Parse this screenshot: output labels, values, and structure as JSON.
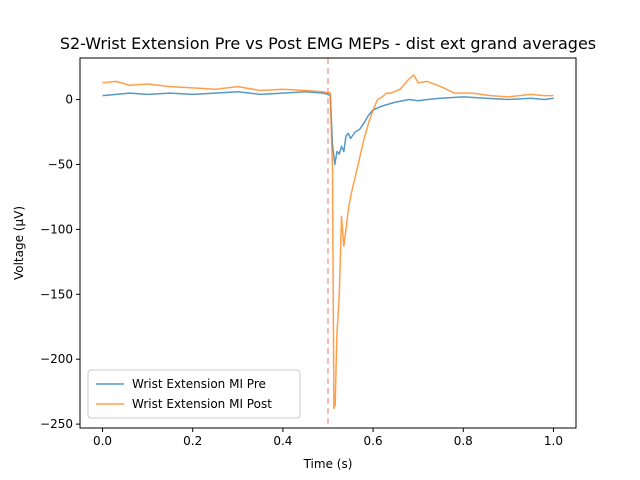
{
  "chart_data": {
    "type": "line",
    "title": "S2-Wrist Extension Pre vs Post EMG MEPs - dist ext grand averages",
    "xlabel": "Time (s)",
    "ylabel": "Voltage (µV)",
    "xlim": [
      -0.05,
      1.05
    ],
    "ylim": [
      -253,
      32
    ],
    "xticks": [
      0.0,
      0.2,
      0.4,
      0.6,
      0.8,
      1.0
    ],
    "xtick_labels": [
      "0.0",
      "0.2",
      "0.4",
      "0.6",
      "0.8",
      "1.0"
    ],
    "yticks": [
      0,
      -50,
      -100,
      -150,
      -200,
      -250
    ],
    "ytick_labels": [
      "0",
      "−50",
      "−100",
      "−150",
      "−200",
      "−250"
    ],
    "grid": false,
    "legend_position": "lower-left",
    "vline": {
      "x": 0.5,
      "color": "#f4a6a6",
      "style": "dashed"
    },
    "series": [
      {
        "name": "Wrist Extension MI Pre",
        "color": "#1f77b4",
        "x": [
          0.0,
          0.03,
          0.06,
          0.1,
          0.15,
          0.2,
          0.25,
          0.3,
          0.35,
          0.4,
          0.45,
          0.49,
          0.5,
          0.505,
          0.51,
          0.515,
          0.52,
          0.525,
          0.53,
          0.535,
          0.54,
          0.545,
          0.55,
          0.56,
          0.57,
          0.58,
          0.59,
          0.6,
          0.62,
          0.65,
          0.68,
          0.7,
          0.72,
          0.75,
          0.8,
          0.85,
          0.9,
          0.95,
          0.98,
          1.0
        ],
        "y": [
          3,
          4,
          5,
          4,
          5,
          4,
          5,
          6,
          4,
          5,
          6,
          5,
          4,
          3,
          -35,
          -50,
          -40,
          -42,
          -36,
          -40,
          -28,
          -26,
          -30,
          -25,
          -23,
          -18,
          -12,
          -8,
          -5,
          -2,
          0,
          -1,
          0,
          1,
          2,
          1,
          0,
          1,
          0,
          1
        ]
      },
      {
        "name": "Wrist Extension MI Post",
        "color": "#ff7f0e",
        "x": [
          0.0,
          0.03,
          0.06,
          0.1,
          0.15,
          0.2,
          0.25,
          0.3,
          0.35,
          0.4,
          0.45,
          0.49,
          0.505,
          0.51,
          0.513,
          0.516,
          0.518,
          0.52,
          0.525,
          0.53,
          0.535,
          0.54,
          0.545,
          0.55,
          0.56,
          0.57,
          0.58,
          0.59,
          0.6,
          0.61,
          0.62,
          0.63,
          0.64,
          0.66,
          0.68,
          0.69,
          0.7,
          0.72,
          0.75,
          0.78,
          0.82,
          0.86,
          0.9,
          0.95,
          0.98,
          1.0
        ],
        "y": [
          13,
          14,
          11,
          12,
          10,
          9,
          8,
          10,
          7,
          8,
          7,
          6,
          5,
          -55,
          -238,
          -235,
          -205,
          -180,
          -150,
          -90,
          -113,
          -100,
          -85,
          -75,
          -60,
          -45,
          -30,
          -18,
          -8,
          0,
          2,
          5,
          5,
          8,
          16,
          19,
          13,
          14,
          10,
          5,
          5,
          3,
          2,
          4,
          3,
          3
        ]
      }
    ]
  }
}
